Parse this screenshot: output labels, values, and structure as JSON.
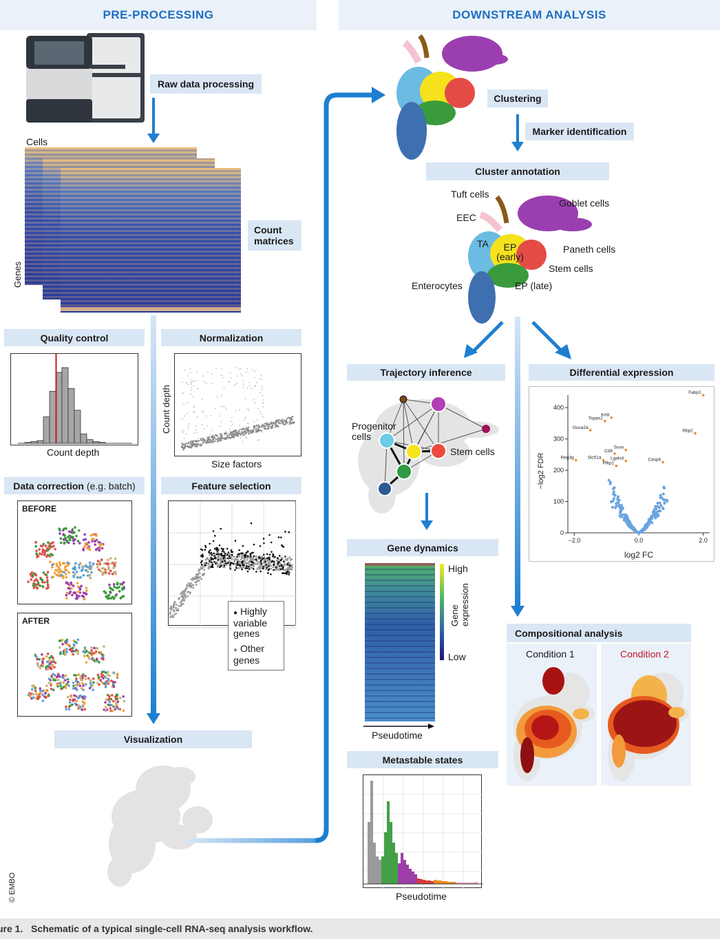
{
  "headers": {
    "pre": "PRE-PROCESSING",
    "down": "DOWNSTREAM ANALYSIS"
  },
  "pre": {
    "raw": "Raw data processing",
    "cells": "Cells",
    "genes": "Genes",
    "count_matrices": "Count matrices",
    "qc": "Quality control",
    "qc_axis": "Count depth",
    "norm": "Normalization",
    "norm_x": "Size factors",
    "norm_y": "Count depth",
    "data_correction": "Data correction",
    "data_correction_sub": "(e.g. batch)",
    "before": "BEFORE",
    "after": "AFTER",
    "feature_selection": "Feature selection",
    "legend_hvg": "Highly variable genes",
    "legend_other": "Other genes",
    "visualization": "Visualization",
    "copyright": "© EMBO"
  },
  "down": {
    "clustering": "Clustering",
    "marker": "Marker identification",
    "annotation": "Cluster annotation",
    "cell_types": {
      "tuft": "Tuft cells",
      "goblet": "Goblet cells",
      "eec": "EEC",
      "ta": "TA",
      "ep_early": "EP (early)",
      "paneth": "Paneth cells",
      "stem": "Stem cells",
      "enterocytes": "Enterocytes",
      "ep_late": "EP (late)"
    },
    "trajectory": "Trajectory inference",
    "progenitor": "Progenitor cells",
    "stem_cells": "Stem cells",
    "diffexp": "Differential expression",
    "gene_dynamics": "Gene dynamics",
    "high": "High",
    "low": "Low",
    "gene_expression": "Gene expression",
    "pseudotime": "Pseudotime",
    "metastable": "Metastable states",
    "compositional": "Compositional analysis",
    "condition1": "Condition 1",
    "condition2": "Condition 2"
  },
  "colors": {
    "accent": "#1e7fd0",
    "band": "#d9e6f4",
    "condition2": "#c0172b",
    "qc_line": "#c0172b"
  },
  "chart_data": [
    {
      "id": "volcano",
      "type": "scatter",
      "title": "Differential expression",
      "xlabel": "log2 FC",
      "ylabel": "−log2 FDR",
      "xlim": [
        -2.2,
        2.2
      ],
      "ylim": [
        0,
        440
      ],
      "xticks": [
        "−2.0",
        "0.0",
        "2.0"
      ],
      "xtick_values": [
        -2.0,
        0.0,
        2.0
      ],
      "yticks": [
        "0",
        "100",
        "200",
        "300",
        "400"
      ],
      "ytick_values": [
        0,
        100,
        200,
        300,
        400
      ],
      "labeled_genes": [
        {
          "name": "Fabp1",
          "x": 2.0,
          "y": 440
        },
        {
          "name": "Krt8",
          "x": -0.85,
          "y": 368
        },
        {
          "name": "Tspan1",
          "x": -1.05,
          "y": 357
        },
        {
          "name": "Guca2a",
          "x": -1.5,
          "y": 328
        },
        {
          "name": "Rbp2",
          "x": 1.75,
          "y": 318
        },
        {
          "name": "Suox",
          "x": -0.4,
          "y": 265
        },
        {
          "name": "Cd9",
          "x": -0.75,
          "y": 253
        },
        {
          "name": "Reg3g",
          "x": -1.95,
          "y": 232
        },
        {
          "name": "Slc51a",
          "x": -1.1,
          "y": 232
        },
        {
          "name": "Lgals4",
          "x": -0.4,
          "y": 230
        },
        {
          "name": "Casp6",
          "x": 0.75,
          "y": 226
        },
        {
          "name": "Pfkp1",
          "x": -0.7,
          "y": 214
        }
      ]
    },
    {
      "id": "qc_hist",
      "type": "bar",
      "title": "Quality control",
      "xlabel": "Count depth",
      "values": [
        1,
        2,
        3,
        28,
        55,
        75,
        80,
        58,
        35,
        10,
        4,
        2,
        1
      ],
      "threshold_bin": 2.5
    },
    {
      "id": "metastable_hist",
      "type": "bar",
      "title": "Metastable states",
      "xlabel": "Pseudotime",
      "segments": [
        {
          "state": "grey",
          "color": "#9a9a9a",
          "values": [
            90,
            150,
            60,
            40,
            35
          ]
        },
        {
          "state": "green",
          "color": "#43a047",
          "values": [
            40,
            75,
            120,
            90,
            60,
            45
          ]
        },
        {
          "state": "purple",
          "color": "#9c3fa6",
          "values": [
            30,
            45,
            35,
            28,
            22,
            18,
            14
          ]
        },
        {
          "state": "red",
          "color": "#d63b3b",
          "values": [
            8,
            7,
            6,
            5,
            5,
            4
          ]
        },
        {
          "state": "orange",
          "color": "#f08a1c",
          "values": [
            6,
            5,
            5,
            4,
            4,
            3,
            3,
            3
          ]
        },
        {
          "state": "pink",
          "color": "#f5a0b8",
          "values": [
            2,
            2,
            2,
            2,
            2,
            2,
            2,
            3
          ]
        }
      ]
    }
  ]
}
